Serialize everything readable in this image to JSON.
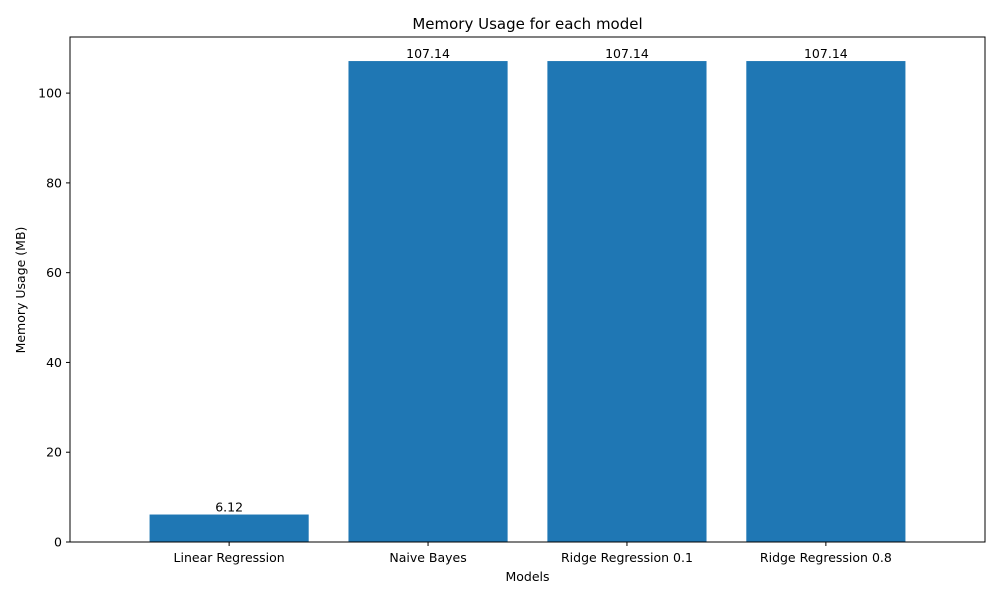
{
  "chart_data": {
    "type": "bar",
    "title": "Memory Usage for each model",
    "xlabel": "Models",
    "ylabel": "Memory Usage (MB)",
    "categories": [
      "Linear Regression",
      "Naive Bayes",
      "Ridge Regression 0.1",
      "Ridge Regression 0.8"
    ],
    "values": [
      6.12,
      107.14,
      107.14,
      107.14
    ],
    "value_labels": [
      "6.12",
      "107.14",
      "107.14",
      "107.14"
    ],
    "yticks": [
      0,
      20,
      40,
      60,
      80,
      100
    ],
    "ylim": [
      0,
      112.5
    ],
    "bar_color": "#1f77b4",
    "grid": false,
    "legend": "none"
  }
}
